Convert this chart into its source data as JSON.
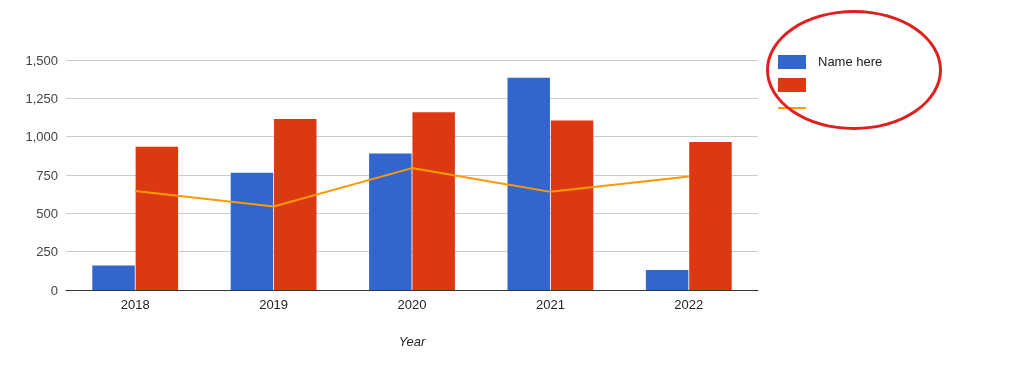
{
  "chart_data": {
    "type": "bar",
    "xlabel": "Year",
    "categories": [
      "2018",
      "2019",
      "2020",
      "2021",
      "2022"
    ],
    "series": [
      {
        "name": "Name here",
        "color": "#3366cc",
        "values": [
          160,
          765,
          890,
          1385,
          130
        ]
      },
      {
        "color": "#dc3912",
        "values": [
          935,
          1115,
          1160,
          1105,
          965
        ]
      },
      {
        "type": "line",
        "color": "#ff9900",
        "values": [
          645,
          545,
          795,
          640,
          740
        ],
        "marker": "none",
        "line_style": "solid"
      }
    ],
    "ylim": [
      0,
      1500
    ],
    "yticks": [
      0,
      250,
      500,
      750,
      {
        "value": 1000,
        "label": "1,000"
      },
      {
        "value": 1250,
        "label": "1,250"
      },
      {
        "value": 1500,
        "label": "1,500"
      }
    ],
    "grid": "y",
    "legend": "right"
  }
}
